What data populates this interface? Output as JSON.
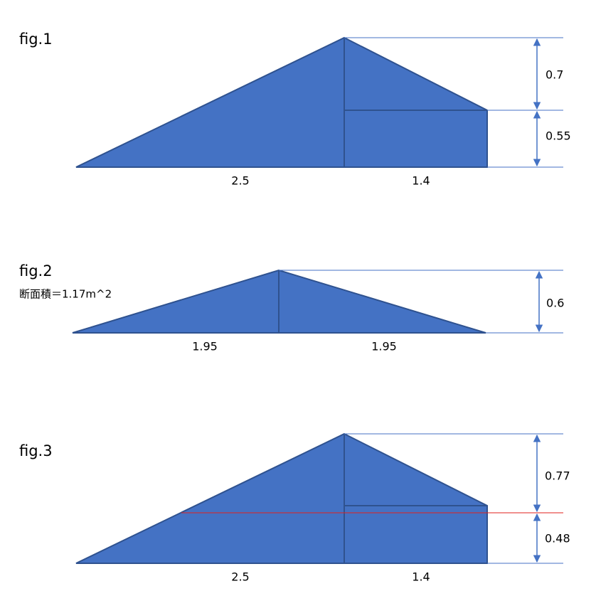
{
  "figures": [
    {
      "title": "fig.1",
      "heights": [
        "0.7",
        "0.55"
      ],
      "widths": [
        "2.5",
        "1.4"
      ]
    },
    {
      "title": "fig.2",
      "note": "断面積＝1.17m^2",
      "heights": [
        "0.6"
      ],
      "widths": [
        "1.95",
        "1.95"
      ]
    },
    {
      "title": "fig.3",
      "heights": [
        "0.77",
        "0.48"
      ],
      "widths": [
        "2.5",
        "1.4"
      ]
    }
  ]
}
